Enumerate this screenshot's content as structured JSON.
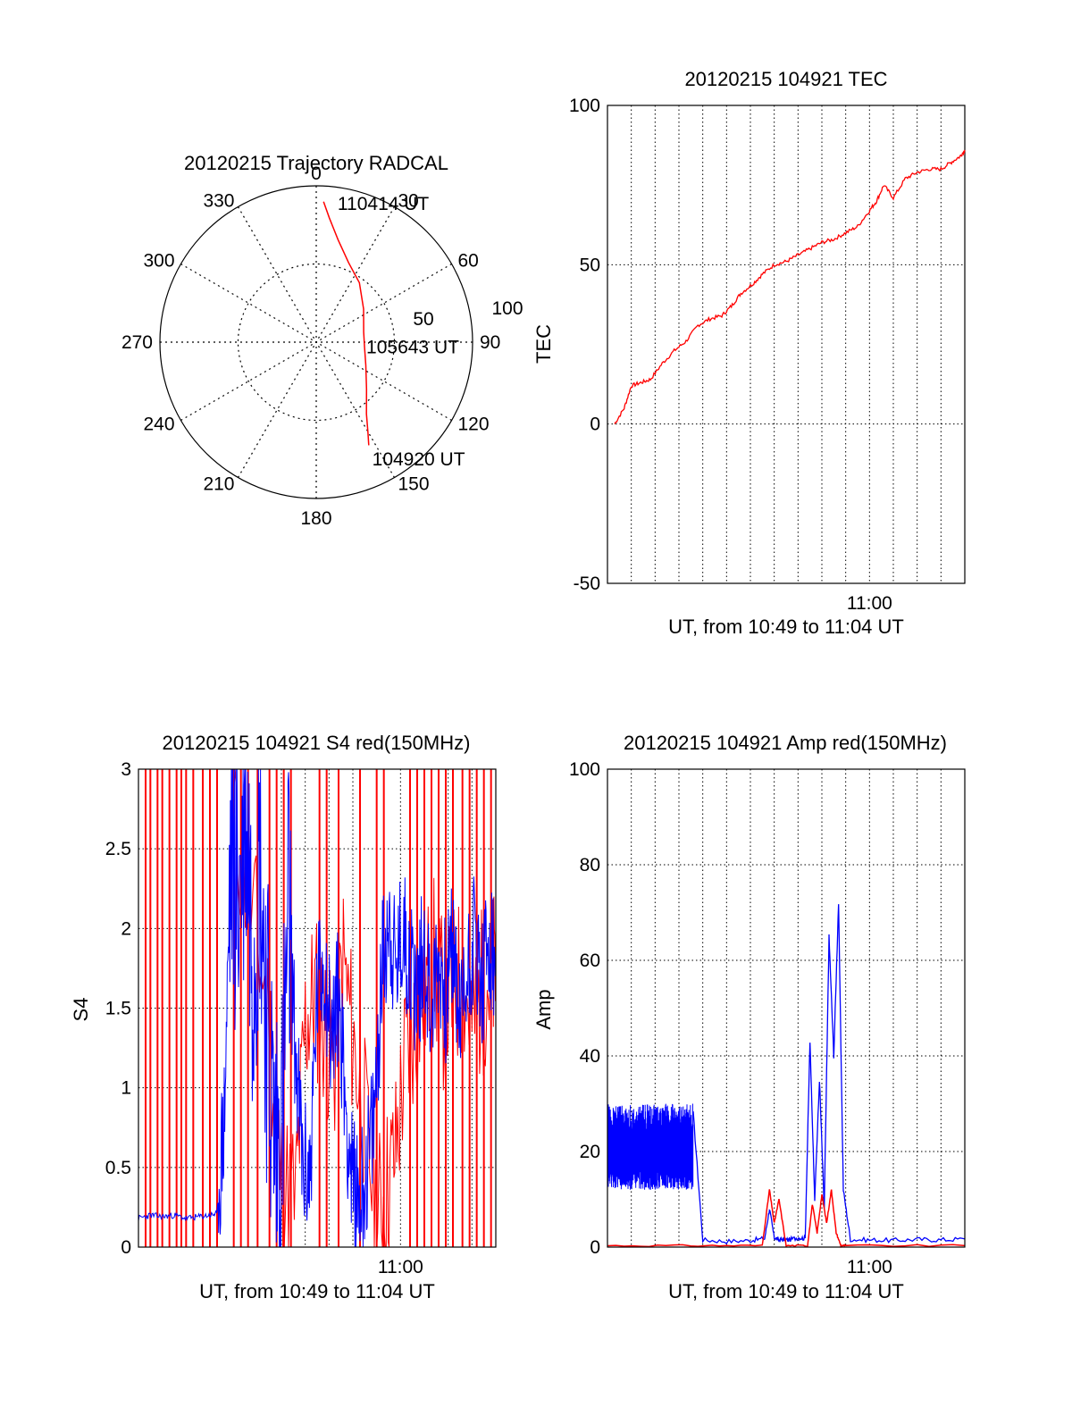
{
  "chart_data": [
    {
      "id": "trajectory",
      "type": "polar",
      "title": "20120215 Trajectory RADCAL",
      "azimuth_labels": [
        "0",
        "30",
        "60",
        "90",
        "120",
        "150",
        "180",
        "210",
        "240",
        "270",
        "300",
        "330"
      ],
      "radius_labels": [
        "50",
        "100"
      ],
      "radius_max": 100,
      "grid": true,
      "colors": {
        "track": "#ff0000"
      },
      "series": [
        {
          "color": "#ff0000",
          "points": [
            {
              "az": 3,
              "r": 90
            },
            {
              "az": 6,
              "r": 80
            },
            {
              "az": 12,
              "r": 67
            },
            {
              "az": 22,
              "r": 55
            },
            {
              "az": 36,
              "r": 47
            },
            {
              "az": 55,
              "r": 37
            },
            {
              "az": 78,
              "r": 31
            },
            {
              "az": 95,
              "r": 31
            },
            {
              "az": 115,
              "r": 35
            },
            {
              "az": 133,
              "r": 44
            },
            {
              "az": 145,
              "r": 56
            },
            {
              "az": 150,
              "r": 66
            },
            {
              "az": 153,
              "r": 74
            }
          ]
        }
      ],
      "annotations": [
        {
          "text": "110414 UT",
          "az": 8,
          "r": 90
        },
        {
          "text": "105643 UT",
          "az": 95,
          "r": 31
        },
        {
          "text": "104920 UT",
          "az": 155,
          "r": 82
        }
      ]
    },
    {
      "id": "tec",
      "type": "line",
      "title": "20120215 104921 TEC",
      "xlabel": "UT, from 10:49 to 11:04 UT",
      "ylabel": "TEC",
      "x_range_minutes": [
        0,
        15
      ],
      "x_ticks": [
        {
          "t": 11,
          "label": "11:00"
        }
      ],
      "ylim": [
        -50,
        100
      ],
      "y_ticks": [
        -50,
        0,
        50,
        100
      ],
      "grid": true,
      "colors": {
        "line": "#ff0000"
      },
      "series": [
        {
          "color": "#ff0000",
          "x": [
            0.3,
            0.7,
            1.0,
            1.4,
            1.8,
            2.3,
            2.8,
            3.3,
            3.8,
            4.3,
            4.8,
            5.2,
            5.6,
            6.1,
            6.5,
            7.0,
            7.5,
            8.0,
            8.5,
            9.0,
            9.5,
            10.0,
            10.5,
            11.0,
            11.3,
            11.6,
            12.0,
            12.5,
            13.0,
            13.5,
            14.0,
            14.4,
            14.8,
            15.0
          ],
          "y": [
            0,
            5,
            12,
            13,
            14,
            19,
            23,
            26,
            31,
            33,
            34,
            37,
            41,
            44,
            47,
            50,
            51,
            53,
            55,
            57,
            58,
            60,
            62,
            67,
            70,
            75,
            71,
            77,
            79,
            80,
            80,
            82,
            84,
            86
          ]
        }
      ]
    },
    {
      "id": "s4",
      "type": "line",
      "title": "20120215 104921 S4 red(150MHz)",
      "xlabel": "UT, from 10:49 to 11:04 UT",
      "ylabel": "S4",
      "x_range_minutes": [
        0,
        15
      ],
      "x_ticks": [
        {
          "t": 11,
          "label": "11:00"
        }
      ],
      "ylim": [
        0,
        3
      ],
      "y_ticks": [
        0,
        0.5,
        1,
        1.5,
        2,
        2.5,
        3
      ],
      "y_tick_labels": [
        "0",
        "0.5",
        "1",
        "1.5",
        "2",
        "2.5",
        "3"
      ],
      "grid": true,
      "colors": {
        "series_1": "#ff0000",
        "series_2": "#0000ff"
      },
      "series": [
        {
          "color": "#ff0000",
          "spikes_x": [
            0.3,
            0.5,
            0.8,
            1.0,
            1.3,
            1.6,
            1.8,
            2.0,
            2.3,
            2.7,
            3.0,
            3.3,
            4.0,
            4.3,
            4.6,
            5.0,
            5.5,
            5.8,
            6.1,
            6.4,
            7.6,
            7.9,
            8.4,
            9.3,
            10.0,
            10.3,
            11.4,
            11.7,
            12.0,
            12.3,
            12.6,
            12.9,
            13.2,
            13.6,
            13.9,
            14.2,
            14.5,
            14.8
          ],
          "x": [
            4.0,
            4.8,
            5.5,
            6.0,
            6.6,
            7.0,
            7.4,
            7.8,
            8.2,
            8.6,
            9.0,
            9.5,
            10.0,
            10.4,
            10.8,
            11.2,
            11.6,
            12.0,
            12.4,
            12.8,
            13.2,
            13.6,
            14.0,
            14.4,
            14.8,
            15.0
          ],
          "y": [
            2.7,
            2.1,
            1.4,
            0.4,
            0.3,
            1.4,
            1.6,
            1.4,
            1.1,
            1.8,
            1.3,
            0.8,
            0.2,
            0.35,
            0.6,
            1.2,
            1.4,
            1.6,
            1.8,
            1.5,
            1.6,
            1.7,
            1.4,
            1.6,
            1.7,
            1.7
          ]
        },
        {
          "color": "#0000ff",
          "x": [
            0.0,
            0.5,
            1.0,
            1.5,
            2.0,
            2.5,
            3.0,
            3.3,
            3.6,
            3.9,
            4.2,
            4.5,
            4.8,
            5.1,
            5.4,
            5.7,
            6.0,
            6.3,
            6.6,
            6.9,
            7.2,
            7.5,
            7.8,
            8.1,
            8.4,
            8.7,
            9.0,
            9.3,
            9.6,
            9.9,
            10.2,
            10.5,
            10.8,
            11.1,
            11.4,
            11.7,
            12.0,
            12.3,
            12.6,
            12.9,
            13.2,
            13.5,
            13.8,
            14.1,
            14.4,
            14.7,
            15.0
          ],
          "y": [
            0.18,
            0.2,
            0.19,
            0.2,
            0.18,
            0.19,
            0.2,
            0.21,
            0.8,
            2.6,
            2.2,
            2.8,
            1.9,
            2.5,
            1.4,
            0.7,
            0.6,
            2.1,
            1.2,
            0.5,
            0.45,
            1.6,
            1.8,
            1.3,
            1.6,
            0.9,
            0.35,
            0.3,
            0.5,
            0.8,
            1.7,
            2.1,
            1.7,
            2.0,
            1.8,
            1.6,
            1.9,
            1.5,
            1.8,
            1.6,
            1.9,
            1.4,
            1.7,
            2.0,
            1.6,
            1.9,
            1.7
          ]
        }
      ]
    },
    {
      "id": "amp",
      "type": "line",
      "title": "20120215 104921 Amp red(150MHz)",
      "xlabel": "UT, from 10:49 to 11:04 UT",
      "ylabel": "Amp",
      "x_range_minutes": [
        0,
        15
      ],
      "x_ticks": [
        {
          "t": 11,
          "label": "11:00"
        }
      ],
      "ylim": [
        0,
        100
      ],
      "y_ticks": [
        0,
        20,
        40,
        60,
        80,
        100
      ],
      "grid": true,
      "colors": {
        "series_1": "#ff0000",
        "series_2": "#0000ff"
      },
      "series": [
        {
          "color": "#ff0000",
          "x": [
            0.0,
            3.5,
            6.5,
            6.8,
            7.0,
            7.2,
            7.5,
            8.4,
            8.6,
            8.8,
            9.0,
            9.2,
            9.4,
            9.6,
            9.8,
            10.0,
            15.0
          ],
          "y": [
            0.3,
            0.3,
            0.3,
            12,
            5,
            10,
            0.3,
            0.3,
            9,
            3,
            11,
            5,
            12,
            3,
            0.3,
            0.3,
            0.3
          ]
        },
        {
          "color": "#0000ff",
          "band": {
            "x_from": 0.0,
            "x_to": 3.6,
            "low": 12,
            "high": 30
          },
          "x": [
            3.6,
            4.0,
            5.0,
            6.0,
            6.6,
            6.8,
            7.0,
            7.2,
            7.4,
            7.6,
            8.0,
            8.3,
            8.5,
            8.7,
            8.9,
            9.1,
            9.3,
            9.5,
            9.7,
            9.9,
            10.2,
            11.0,
            12.0,
            13.0,
            14.0,
            15.0
          ],
          "y": [
            28,
            1.5,
            1.2,
            1.4,
            1.8,
            8,
            2,
            1.5,
            1.6,
            1.5,
            2,
            1.8,
            43,
            10,
            35,
            8,
            65,
            40,
            72,
            12,
            1.6,
            1.5,
            1.4,
            1.6,
            1.5,
            1.7
          ]
        }
      ]
    }
  ]
}
